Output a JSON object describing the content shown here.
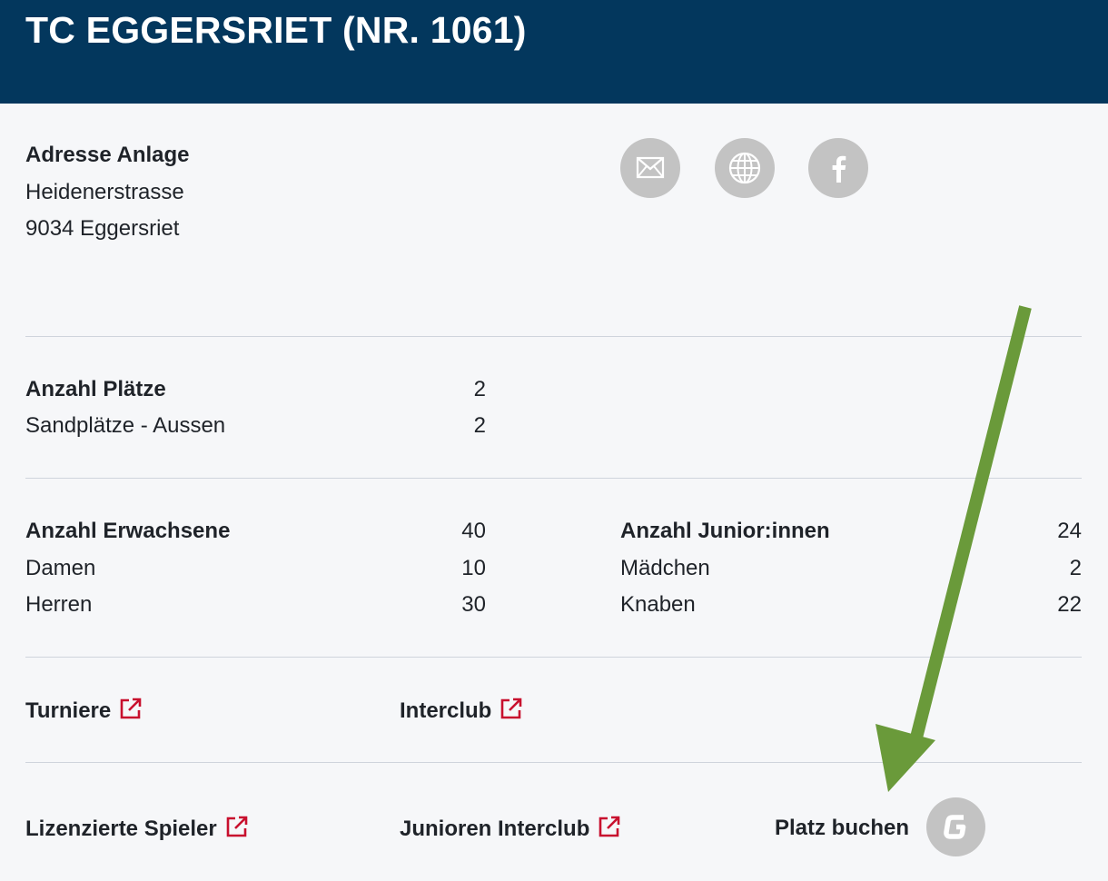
{
  "header": {
    "title": "TC EGGERSRIET (NR. 1061)"
  },
  "address": {
    "heading": "Adresse Anlage",
    "street": "Heidenerstrasse",
    "city": "9034 Eggersriet"
  },
  "social": {
    "icons": [
      "envelope-icon",
      "globe-icon",
      "facebook-icon"
    ]
  },
  "courts": {
    "heading": "Anzahl Plätze",
    "heading_value": "2",
    "rows": [
      {
        "label": "Sandplätze - Aussen",
        "value": "2"
      }
    ]
  },
  "adults": {
    "heading": "Anzahl Erwachsene",
    "heading_value": "40",
    "rows": [
      {
        "label": "Damen",
        "value": "10"
      },
      {
        "label": "Herren",
        "value": "30"
      }
    ]
  },
  "juniors": {
    "heading": "Anzahl Junior:innen",
    "heading_value": "24",
    "rows": [
      {
        "label": "Mädchen",
        "value": "2"
      },
      {
        "label": "Knaben",
        "value": "22"
      }
    ]
  },
  "links": {
    "turniere": "Turniere",
    "interclub": "Interclub",
    "lizenzierte": "Lizenzierte Spieler",
    "junioren_interclub": "Junioren Interclub",
    "platz_buchen": "Platz buchen"
  },
  "colors": {
    "header_bg": "#03375d",
    "link_icon": "#c8102e",
    "social_bg": "#c3c3c3",
    "arrow": "#6a9a3a"
  }
}
